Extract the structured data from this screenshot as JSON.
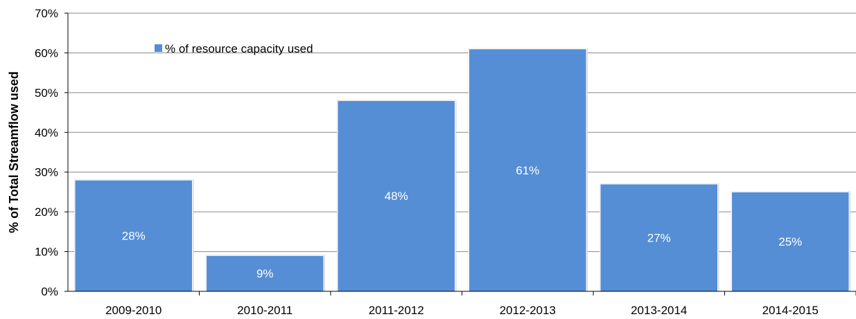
{
  "chart_data": {
    "type": "bar",
    "categories": [
      "2009-2010",
      "2010-2011",
      "2011-2012",
      "2012-2013",
      "2013-2014",
      "2014-2015"
    ],
    "series": [
      {
        "name": "% of resource capacity used",
        "values": [
          28,
          9,
          48,
          61,
          27,
          25
        ],
        "color": "#558ED5"
      }
    ],
    "data_labels": [
      "28%",
      "9%",
      "48%",
      "61%",
      "27%",
      "25%"
    ],
    "ylabel": "% of Total Streamflow used",
    "xlabel": "",
    "ylim": [
      0,
      70
    ],
    "y_ticks": [
      "0%",
      "10%",
      "20%",
      "30%",
      "40%",
      "50%",
      "60%",
      "70%"
    ],
    "grid": true,
    "legend_position": "top-left"
  }
}
